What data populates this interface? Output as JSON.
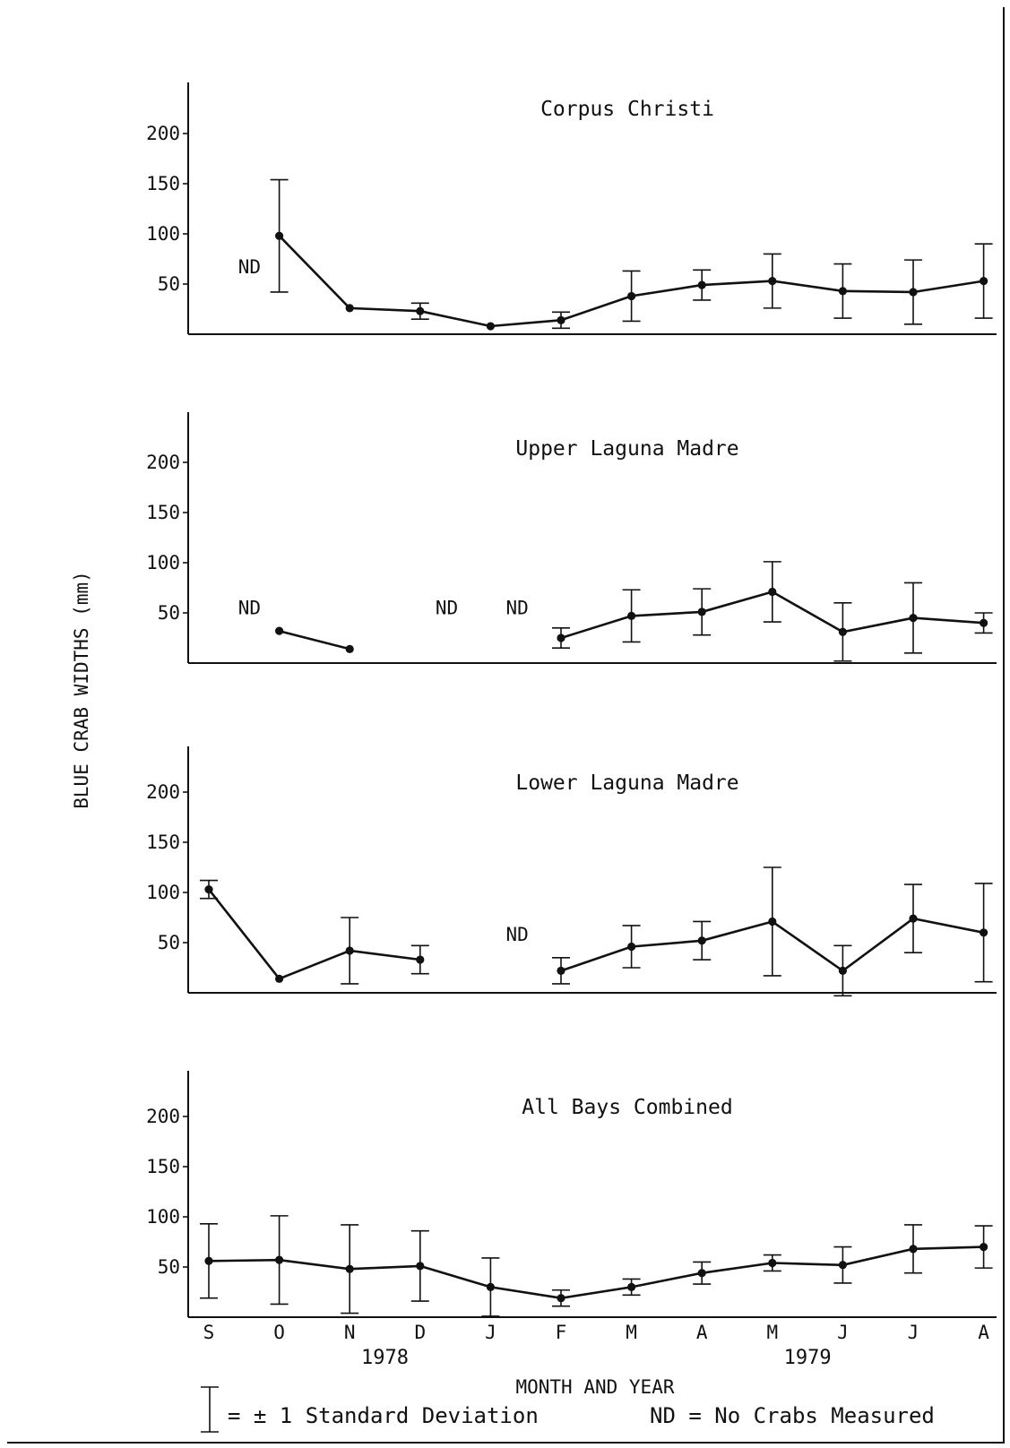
{
  "chart_data": {
    "type": "line",
    "ylabel": "BLUE CRAB WIDTHS (mm)",
    "xlabel": "MONTH AND YEAR",
    "yticks": [
      50,
      100,
      150,
      200
    ],
    "ylim": [
      0,
      240
    ],
    "categories": [
      "S",
      "O",
      "N",
      "D",
      "J",
      "F",
      "M",
      "A",
      "M",
      "J",
      "J",
      "A"
    ],
    "years": [
      {
        "label": "1978",
        "center_month": 2.5
      },
      {
        "label": "1979",
        "center_month": 8.5
      }
    ],
    "panels": [
      {
        "title": "Corpus Christi",
        "nd_labels": [
          {
            "text": "ND",
            "month": 0.4,
            "value": 67
          }
        ],
        "points": [
          {
            "month": 1,
            "mean": 98,
            "sd": 56
          },
          {
            "month": 2,
            "mean": 26,
            "sd": 0
          },
          {
            "month": 3,
            "mean": 23,
            "sd": 8
          },
          {
            "month": 4,
            "mean": 8,
            "sd": 0
          },
          {
            "month": 5,
            "mean": 14,
            "sd": 8
          },
          {
            "month": 6,
            "mean": 38,
            "sd": 25
          },
          {
            "month": 7,
            "mean": 49,
            "sd": 15
          },
          {
            "month": 8,
            "mean": 53,
            "sd": 27
          },
          {
            "month": 9,
            "mean": 43,
            "sd": 27
          },
          {
            "month": 10,
            "mean": 42,
            "sd": 32
          },
          {
            "month": 11,
            "mean": 53,
            "sd": 37
          }
        ],
        "segments": [
          [
            1,
            2,
            3,
            4,
            5,
            6,
            7,
            8,
            9,
            10,
            11
          ]
        ]
      },
      {
        "title": "Upper Laguna Madre",
        "nd_labels": [
          {
            "text": "ND",
            "month": 0.4,
            "value": 55
          },
          {
            "text": "ND",
            "month": 3.2,
            "value": 55
          },
          {
            "text": "ND",
            "month": 4.2,
            "value": 55
          }
        ],
        "points": [
          {
            "month": 1,
            "mean": 32,
            "sd": 0
          },
          {
            "month": 2,
            "mean": 14,
            "sd": 0
          },
          {
            "month": 5,
            "mean": 25,
            "sd": 10
          },
          {
            "month": 6,
            "mean": 47,
            "sd": 26
          },
          {
            "month": 7,
            "mean": 51,
            "sd": 23
          },
          {
            "month": 8,
            "mean": 71,
            "sd": 30
          },
          {
            "month": 9,
            "mean": 31,
            "sd": 29
          },
          {
            "month": 10,
            "mean": 45,
            "sd": 35
          },
          {
            "month": 11,
            "mean": 40,
            "sd": 10
          }
        ],
        "segments": [
          [
            1,
            2
          ],
          [
            5,
            6,
            7,
            8,
            9,
            10,
            11
          ]
        ]
      },
      {
        "title": "Lower Laguna Madre",
        "nd_labels": [
          {
            "text": "ND",
            "month": 4.2,
            "value": 58
          }
        ],
        "points": [
          {
            "month": 0,
            "mean": 103,
            "sd": 9
          },
          {
            "month": 1,
            "mean": 14,
            "sd": 0
          },
          {
            "month": 2,
            "mean": 42,
            "sd": 33
          },
          {
            "month": 3,
            "mean": 33,
            "sd": 14
          },
          {
            "month": 5,
            "mean": 22,
            "sd": 13
          },
          {
            "month": 6,
            "mean": 46,
            "sd": 21
          },
          {
            "month": 7,
            "mean": 52,
            "sd": 19
          },
          {
            "month": 8,
            "mean": 71,
            "sd": 54
          },
          {
            "month": 9,
            "mean": 22,
            "sd": 25
          },
          {
            "month": 10,
            "mean": 74,
            "sd": 34
          },
          {
            "month": 11,
            "mean": 60,
            "sd": 49
          }
        ],
        "segments": [
          [
            0,
            1,
            2,
            3
          ],
          [
            5,
            6,
            7,
            8,
            9,
            10,
            11
          ]
        ]
      },
      {
        "title": "All Bays Combined",
        "nd_labels": [],
        "points": [
          {
            "month": 0,
            "mean": 56,
            "sd": 37
          },
          {
            "month": 1,
            "mean": 57,
            "sd": 44
          },
          {
            "month": 2,
            "mean": 48,
            "sd": 44
          },
          {
            "month": 3,
            "mean": 51,
            "sd": 35
          },
          {
            "month": 4,
            "mean": 30,
            "sd": 29
          },
          {
            "month": 5,
            "mean": 19,
            "sd": 8
          },
          {
            "month": 6,
            "mean": 30,
            "sd": 8
          },
          {
            "month": 7,
            "mean": 44,
            "sd": 11
          },
          {
            "month": 8,
            "mean": 54,
            "sd": 8
          },
          {
            "month": 9,
            "mean": 52,
            "sd": 18
          },
          {
            "month": 10,
            "mean": 68,
            "sd": 24
          },
          {
            "month": 11,
            "mean": 70,
            "sd": 21
          }
        ],
        "segments": [
          [
            0,
            1,
            2,
            3,
            4,
            5,
            6,
            7,
            8,
            9,
            10,
            11
          ]
        ]
      }
    ]
  },
  "legend": {
    "sd_text": "= ± 1 Standard Deviation",
    "nd_text": "ND = No Crabs Measured"
  }
}
